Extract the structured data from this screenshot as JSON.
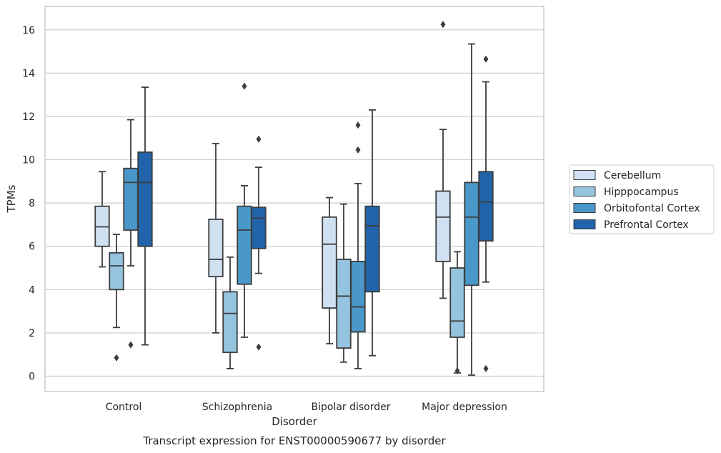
{
  "chart_data": {
    "type": "box",
    "title": "Transcript expression for ENST00000590677 by disorder",
    "xlabel": "Disorder",
    "ylabel": "TPMs",
    "ylim": [
      -0.7,
      17.1
    ],
    "yticks": [
      0,
      2,
      4,
      6,
      8,
      10,
      12,
      14,
      16
    ],
    "grid": "horizontal",
    "legend_position": "right",
    "categories": [
      "Control",
      "Schizophrenia",
      "Bipolar disorder",
      "Major depression"
    ],
    "series": [
      {
        "name": "Cerebellum",
        "color": "#d0e1f2",
        "boxes": [
          {
            "whisker_low": 5.05,
            "q1": 6.0,
            "median": 6.9,
            "q3": 7.85,
            "whisker_high": 9.45,
            "outliers": []
          },
          {
            "whisker_low": 2.0,
            "q1": 4.6,
            "median": 5.4,
            "q3": 7.25,
            "whisker_high": 10.75,
            "outliers": []
          },
          {
            "whisker_low": 1.5,
            "q1": 3.15,
            "median": 6.1,
            "q3": 7.35,
            "whisker_high": 8.25,
            "outliers": []
          },
          {
            "whisker_low": 3.6,
            "q1": 5.3,
            "median": 7.35,
            "q3": 8.55,
            "whisker_high": 11.4,
            "outliers": [
              16.25
            ]
          }
        ]
      },
      {
        "name": "Hipppocampus",
        "color": "#94c4df",
        "boxes": [
          {
            "whisker_low": 2.25,
            "q1": 4.0,
            "median": 5.1,
            "q3": 5.7,
            "whisker_high": 6.55,
            "outliers": [
              0.85
            ]
          },
          {
            "whisker_low": 0.35,
            "q1": 1.1,
            "median": 2.9,
            "q3": 3.9,
            "whisker_high": 5.5,
            "outliers": []
          },
          {
            "whisker_low": 0.65,
            "q1": 1.3,
            "median": 3.7,
            "q3": 5.4,
            "whisker_high": 7.95,
            "outliers": []
          },
          {
            "whisker_low": 0.15,
            "q1": 1.8,
            "median": 2.55,
            "q3": 5.0,
            "whisker_high": 5.75,
            "outliers": [
              0.25
            ]
          }
        ]
      },
      {
        "name": "Orbitofontal Cortex",
        "color": "#4a98c9",
        "boxes": [
          {
            "whisker_low": 5.1,
            "q1": 6.75,
            "median": 8.95,
            "q3": 9.6,
            "whisker_high": 11.85,
            "outliers": [
              1.45
            ]
          },
          {
            "whisker_low": 1.8,
            "q1": 4.25,
            "median": 6.75,
            "q3": 7.85,
            "whisker_high": 8.8,
            "outliers": [
              13.4
            ]
          },
          {
            "whisker_low": 0.35,
            "q1": 2.05,
            "median": 3.2,
            "q3": 5.3,
            "whisker_high": 8.9,
            "outliers": [
              10.45,
              11.6
            ]
          },
          {
            "whisker_low": 0.05,
            "q1": 4.2,
            "median": 7.35,
            "q3": 8.95,
            "whisker_high": 15.35,
            "outliers": []
          }
        ]
      },
      {
        "name": "Prefrontal Cortex",
        "color": "#2164ab",
        "boxes": [
          {
            "whisker_low": 1.45,
            "q1": 6.0,
            "median": 8.95,
            "q3": 10.35,
            "whisker_high": 13.35,
            "outliers": []
          },
          {
            "whisker_low": 4.75,
            "q1": 5.9,
            "median": 7.3,
            "q3": 7.8,
            "whisker_high": 9.65,
            "outliers": [
              1.35,
              10.95
            ]
          },
          {
            "whisker_low": 0.95,
            "q1": 3.9,
            "median": 6.95,
            "q3": 7.85,
            "whisker_high": 12.3,
            "outliers": []
          },
          {
            "whisker_low": 4.35,
            "q1": 6.25,
            "median": 8.05,
            "q3": 9.45,
            "whisker_high": 13.6,
            "outliers": [
              0.35,
              14.65
            ]
          }
        ]
      }
    ]
  }
}
